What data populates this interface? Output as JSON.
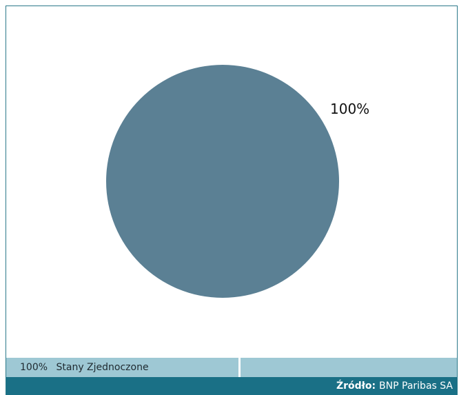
{
  "chart_data": {
    "type": "pie",
    "slices": [
      {
        "label": "Stany Zjednoczone",
        "value": 100,
        "display": "100%",
        "color": "#5b8094"
      }
    ]
  },
  "legend": {
    "items": [
      {
        "pct": "100%",
        "label": "Stany Zjednoczone"
      }
    ]
  },
  "source": {
    "label": "Źródło:",
    "value": "BNP Paribas SA"
  }
}
